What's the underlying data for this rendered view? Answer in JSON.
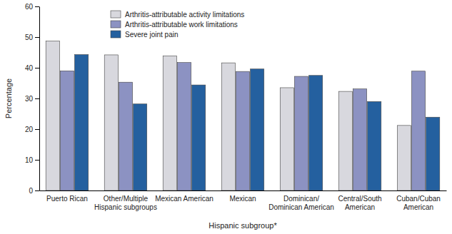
{
  "chart_data": {
    "type": "bar",
    "x_label": "Hispanic subgroup*",
    "y_label": "Percentage",
    "categories": [
      "Puerto Rican",
      "Other/Multiple Hispanic subgroups",
      "Mexican American",
      "Mexican",
      "Dominican/Dominican American",
      "Central/South American",
      "Cuban/Cuban American"
    ],
    "series": [
      {
        "name": "Arthritis-attributable activity limitations",
        "color": "#d8d8de",
        "values": [
          48.7,
          44.2,
          43.9,
          41.6,
          33.5,
          32.3,
          21.2
        ]
      },
      {
        "name": "Arthritis-attributable work limitations",
        "color": "#8c92c2",
        "values": [
          39.0,
          35.3,
          41.7,
          38.8,
          37.2,
          33.1,
          38.9
        ]
      },
      {
        "name": "Severe joint pain",
        "color": "#24609f",
        "values": [
          44.3,
          28.2,
          34.4,
          39.6,
          37.5,
          29.0,
          23.9
        ]
      }
    ],
    "ylim": [
      0,
      60
    ],
    "yticks": [
      0,
      10,
      20,
      30,
      40,
      50,
      60
    ],
    "grid": false,
    "legend": "upper-left"
  }
}
